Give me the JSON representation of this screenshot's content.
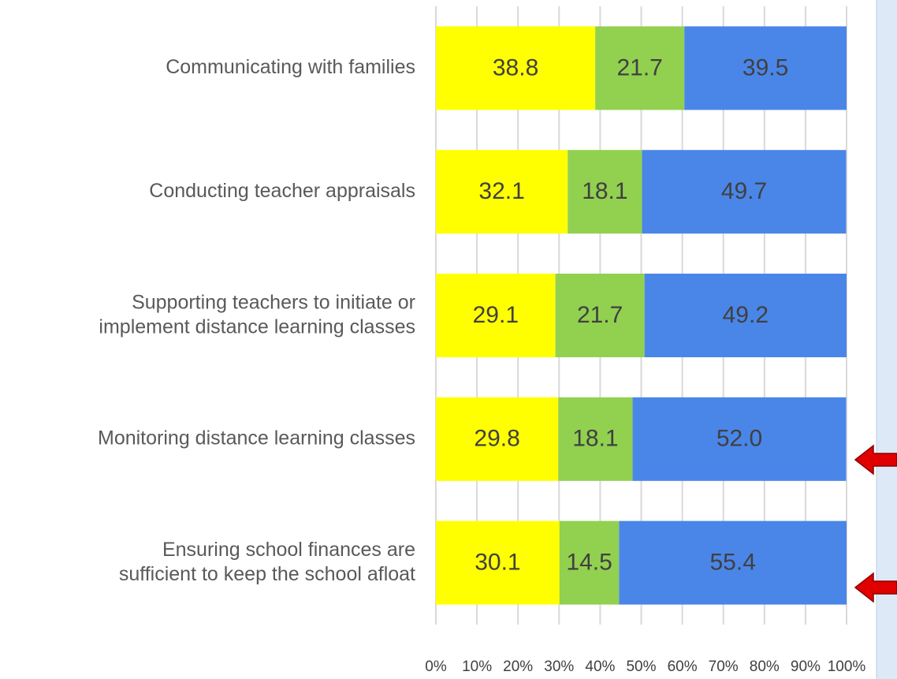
{
  "chart_data": {
    "type": "stacked-barh",
    "categories": [
      "Communicating with families",
      "Conducting teacher appraisals",
      "Supporting teachers to initiate or\nimplement distance learning classes",
      "Monitoring distance learning classes",
      "Ensuring school finances are\nsufficient to keep the school afloat"
    ],
    "series": [
      {
        "color": "#ffff00",
        "values": [
          38.8,
          32.1,
          29.1,
          29.8,
          30.1
        ],
        "value_labels": [
          "38.8",
          "32.1",
          "29.1",
          "29.8",
          "30.1"
        ]
      },
      {
        "color": "#92d050",
        "values": [
          21.7,
          18.1,
          21.7,
          18.1,
          14.5
        ],
        "value_labels": [
          "21.7",
          "18.1",
          "21.7",
          "18.1",
          "14.5"
        ]
      },
      {
        "color": "#4a86e8",
        "values": [
          39.5,
          49.7,
          49.2,
          52.0,
          55.4
        ],
        "value_labels": [
          "39.5",
          "49.7",
          "49.2",
          "52.0",
          "55.4"
        ]
      }
    ],
    "xlim": [
      0,
      100
    ],
    "xticks": [
      {
        "value": 0,
        "label": "0%"
      },
      {
        "value": 10,
        "label": "10%"
      },
      {
        "value": 20,
        "label": "20%"
      },
      {
        "value": 30,
        "label": "30%"
      },
      {
        "value": 40,
        "label": "40%"
      },
      {
        "value": 50,
        "label": "50%"
      },
      {
        "value": 60,
        "label": "60%"
      },
      {
        "value": 70,
        "label": "70%"
      },
      {
        "value": 80,
        "label": "80%"
      },
      {
        "value": 90,
        "label": "90%"
      },
      {
        "value": 100,
        "label": "100%"
      }
    ],
    "grid": true
  }
}
